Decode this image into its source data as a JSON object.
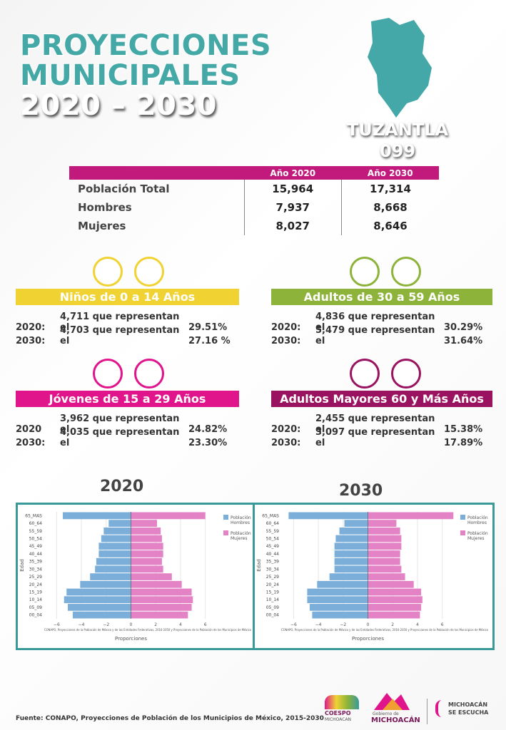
{
  "header": {
    "title_lines": [
      "PROYECCIONES",
      "MUNICIPALES",
      "2020 – 2030"
    ],
    "municipality": "TUZANTLA",
    "code": "099"
  },
  "table": {
    "columns": [
      "Año 2020",
      "Año 2030"
    ],
    "rows": [
      [
        "Población Total",
        "15,964",
        "17,314"
      ],
      [
        "Hombres",
        "7,937",
        "8,668"
      ],
      [
        "Mujeres",
        "8,027",
        "8,646"
      ]
    ]
  },
  "groups": [
    {
      "title": "Niños de 0 a 14 Años",
      "rows": [
        {
          "year": "2020:",
          "text": "4,711 que representan el",
          "pct": "29.51%"
        },
        {
          "year": "2030:",
          "text": "4,703 que representan el",
          "pct": "27.16 %"
        }
      ]
    },
    {
      "title": "Adultos de 30 a 59 Años",
      "rows": [
        {
          "year": "2020:",
          "text": "4,836 que representan el",
          "pct": "30.29%"
        },
        {
          "year": "2030:",
          "text": "5,479 que representan el",
          "pct": "31.64%"
        }
      ]
    },
    {
      "title": "Jóvenes de 15 a 29 Años",
      "rows": [
        {
          "year": "2020",
          "text": "3,962 que representan el",
          "pct": "24.82%"
        },
        {
          "year": "2030:",
          "text": "4,035 que representan el",
          "pct": "23.30%"
        }
      ]
    },
    {
      "title": "Adultos Mayores  60 y Más Años",
      "rows": [
        {
          "year": "2020:",
          "text": "2,455 que representan el",
          "pct": "15.38%"
        },
        {
          "year": "2030:",
          "text": "3,097 que representan el",
          "pct": "17.89%"
        }
      ]
    }
  ],
  "chart_data": [
    {
      "type": "bar",
      "orientation": "horizontal",
      "title": "2020",
      "xlabel": "Proporciones",
      "ylabel": "Edad",
      "note": "CONAPO, Proyecciones de la Población de México y de las Entidades Federativas, 2016-2050 y Proyecciones de la Población de los Municipios de México",
      "grid": true,
      "categories": [
        "65_MAS",
        "60_64",
        "55_59",
        "50_54",
        "45_49",
        "40_44",
        "35_39",
        "30_34",
        "25_29",
        "20_24",
        "15_19",
        "10_14",
        "05_09",
        "00_04"
      ],
      "series": [
        {
          "name": "Población Hombres",
          "color": "#7bafd9",
          "values": [
            -5.5,
            -1.8,
            -2.2,
            -2.4,
            -2.6,
            -2.6,
            -2.8,
            -2.9,
            -3.3,
            -4.1,
            -5.2,
            -5.4,
            -5.1,
            -4.7
          ]
        },
        {
          "name": "Población Mujeres",
          "color": "#e382c4",
          "values": [
            6.0,
            2.1,
            2.4,
            2.5,
            2.6,
            2.6,
            2.5,
            2.6,
            3.3,
            4.1,
            4.9,
            5.0,
            4.9,
            4.6
          ]
        }
      ],
      "xlim": [
        -7,
        7
      ],
      "xticks": [
        {
          "value": -6,
          "label": "−6"
        },
        {
          "value": -4,
          "label": "−4"
        },
        {
          "value": -2,
          "label": "−2"
        },
        0,
        2,
        4,
        6
      ]
    },
    {
      "type": "bar",
      "orientation": "horizontal",
      "title": "2030",
      "xlabel": "Proporciones",
      "ylabel": "Edad",
      "note": "CONAPO, Proyecciones de la Población de México y de las Entidades Federativas, 2016-2050 y Proyecciones de la Población de los Municipios de México",
      "grid": true,
      "categories": [
        "65_MAS",
        "60_64",
        "55_59",
        "50_54",
        "45_49",
        "40_44",
        "35_39",
        "30_34",
        "25_29",
        "20_24",
        "15_19",
        "10_14",
        "05_09",
        "00_04"
      ],
      "series": [
        {
          "name": "Población Hombres",
          "color": "#7bafd9",
          "values": [
            -6.4,
            -1.9,
            -2.3,
            -2.6,
            -2.7,
            -2.7,
            -2.7,
            -2.7,
            -3.1,
            -4.1,
            -4.9,
            -4.9,
            -4.7,
            -4.5
          ]
        },
        {
          "name": "Población Mujeres",
          "color": "#e382c4",
          "values": [
            6.9,
            2.3,
            2.6,
            2.7,
            2.7,
            2.6,
            2.6,
            2.7,
            3.0,
            3.7,
            4.3,
            4.4,
            4.3,
            4.2
          ]
        }
      ],
      "xlim": [
        -7,
        7
      ],
      "xticks": [
        {
          "value": -6,
          "label": "−6"
        },
        {
          "value": -4,
          "label": "−4"
        },
        {
          "value": -2,
          "label": "−2"
        },
        0,
        2,
        4,
        6
      ]
    }
  ],
  "footer": {
    "source": "Fuente: CONAPO, Proyecciones de Población de los Municipios de México, 2015-2030",
    "logos": [
      "COESPO",
      "MICHOACAN",
      "Gobierno de",
      "MICHOACÁN",
      "MICHOACÁN",
      "SE ESCUCHA"
    ]
  }
}
